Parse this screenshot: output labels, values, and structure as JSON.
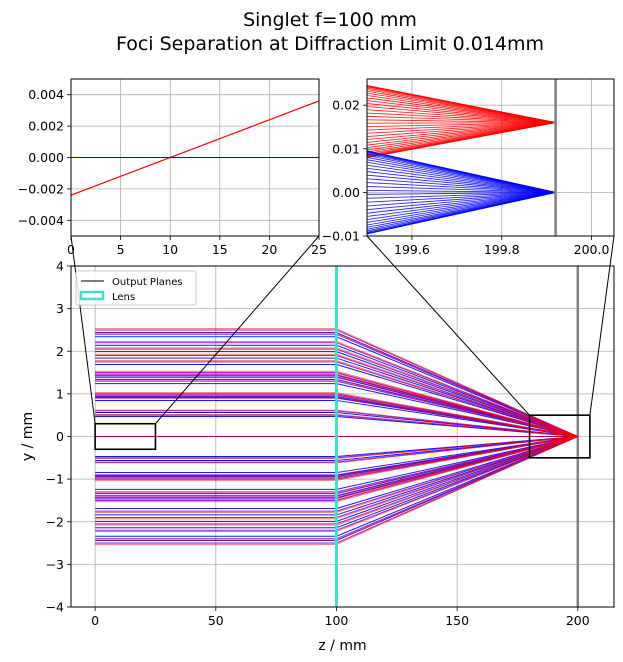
{
  "title_lines": [
    "Singlet f=100 mm",
    "Foci Separation at Diffraction Limit 0.014mm"
  ],
  "colors": {
    "red": "#ff0000",
    "blue": "#0000ff",
    "purple": "#7f00bf",
    "lens": "#40e0d0",
    "plane": "#808080",
    "grid": "#b0b0b0"
  },
  "chart_data": [
    {
      "id": "main",
      "type": "line",
      "xlabel": "z / mm",
      "ylabel": "y / mm",
      "xlim": [
        -10,
        215
      ],
      "ylim": [
        -4,
        4
      ],
      "xticks": [
        0,
        50,
        100,
        150,
        200
      ],
      "xtick_labels": [
        "0",
        "50",
        "100",
        "150",
        "200"
      ],
      "yticks": [
        -4,
        -3,
        -2,
        -1,
        0,
        1,
        2,
        3,
        4
      ],
      "ytick_labels": [
        "−4",
        "−3",
        "−2",
        "−1",
        "0",
        "1",
        "2",
        "3",
        "4"
      ],
      "grid": true,
      "legend": {
        "placement": "top-left",
        "entries": [
          "Output Planes",
          "Lens"
        ]
      },
      "lens_z": 100,
      "output_plane_z": 200,
      "ray_start_z": 0,
      "focus_z": 199.9,
      "ray_heights": [
        -2.5,
        -2.4,
        -2.2,
        -2.05,
        -1.9,
        -1.75,
        -1.5,
        -1.45,
        -1.4,
        -1.3,
        -1.0,
        -0.97,
        -0.9,
        -0.6,
        -0.5,
        0,
        0.5,
        0.6,
        0.9,
        0.97,
        1.0,
        1.3,
        1.4,
        1.45,
        1.5,
        1.75,
        1.9,
        2.05,
        2.2,
        2.4,
        2.5
      ],
      "zoom_boxes": [
        {
          "z": [
            0,
            25
          ],
          "y": [
            -0.3,
            0.3
          ]
        },
        {
          "z": [
            180,
            205
          ],
          "y": [
            -0.5,
            0.5
          ]
        }
      ]
    },
    {
      "id": "inset-left",
      "type": "line",
      "xlim": [
        0,
        25
      ],
      "ylim": [
        -0.005,
        0.005
      ],
      "xticks": [
        0,
        5,
        10,
        15,
        20,
        25
      ],
      "xtick_labels": [
        "0",
        "5",
        "10",
        "15",
        "20",
        "25"
      ],
      "yticks": [
        -0.004,
        -0.002,
        0.0,
        0.002,
        0.004
      ],
      "ytick_labels": [
        "−0.004",
        "−0.002",
        "0.000",
        "0.002",
        "0.004"
      ],
      "grid": true,
      "series": [
        {
          "color": "red",
          "x": [
            0,
            25
          ],
          "y": [
            -0.0024,
            0.0036
          ]
        },
        {
          "color": "blue",
          "x": [
            0,
            25
          ],
          "y": [
            0,
            0
          ]
        }
      ]
    },
    {
      "id": "inset-right",
      "type": "line",
      "xlim": [
        199.5,
        200.05
      ],
      "ylim": [
        -0.01,
        0.026
      ],
      "xticks": [
        199.6,
        199.8,
        200.0
      ],
      "xtick_labels": [
        "199.6",
        "199.8",
        "200.0"
      ],
      "yticks": [
        -0.01,
        0.0,
        0.01,
        0.02
      ],
      "ytick_labels": [
        "−0.01",
        "0.00",
        "0.01",
        "0.02"
      ],
      "grid": true,
      "output_plane_z": 199.92,
      "series": [
        {
          "color": "red",
          "focus": [
            199.92,
            0.016
          ],
          "start_y": [
            0.008,
            0.0245
          ]
        },
        {
          "color": "blue",
          "focus": [
            199.92,
            0.0
          ],
          "start_y": [
            -0.0095,
            0.0095
          ]
        }
      ]
    }
  ]
}
